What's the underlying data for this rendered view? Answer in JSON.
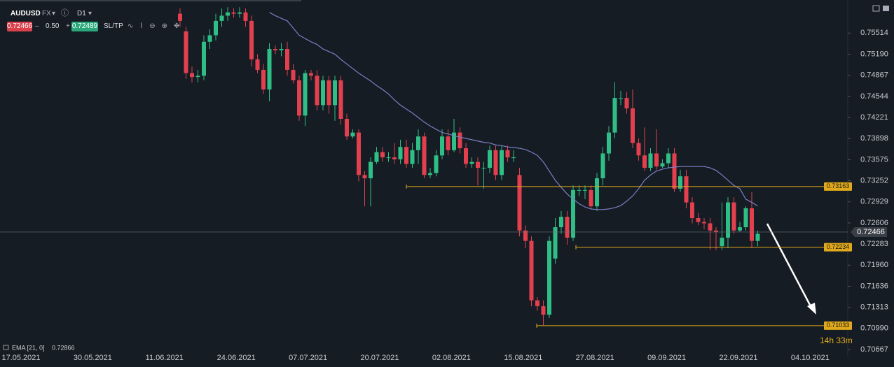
{
  "toolbar": {
    "symbol": "AUDUSD",
    "market": "FX",
    "timeframe": "D1",
    "bid": "0.72466",
    "spread": "0.50",
    "ask": "0.72489",
    "sltp": "SL/TP"
  },
  "chart_data": {
    "type": "candlestick",
    "up_color": "#2fbf86",
    "down_color": "#e2404f",
    "ylim": [
      0.7056,
      0.7602
    ],
    "yticks": [
      0.75514,
      {
        "value": 0.7519,
        "label": "0.75190"
      },
      0.74867,
      0.74544,
      0.74221,
      0.73898,
      0.73575,
      0.73252,
      0.72929,
      0.72606,
      0.72283,
      {
        "value": 0.7196,
        "label": "0.71960"
      },
      0.71636,
      0.71313,
      {
        "value": 0.7099,
        "label": "0.70990"
      },
      0.70667
    ],
    "dates": [
      "17.05.2021",
      "30.05.2021",
      "11.06.2021",
      "24.06.2021",
      "07.07.2021",
      "20.07.2021",
      "02.08.2021",
      "15.08.2021",
      "27.08.2021",
      "09.09.2021",
      "22.09.2021",
      "04.10.2021"
    ],
    "ohlc": [
      [
        0.7581,
        0.7589,
        0.7561,
        0.757
      ],
      [
        0.7554,
        0.7561,
        0.7481,
        0.749
      ],
      [
        0.749,
        0.75,
        0.7476,
        0.7484
      ],
      [
        0.7484,
        0.7495,
        0.7476,
        0.7486
      ],
      [
        0.7486,
        0.7548,
        0.7479,
        0.7538
      ],
      [
        0.7538,
        0.7557,
        0.7527,
        0.7548
      ],
      [
        0.7548,
        0.7581,
        0.754,
        0.757
      ],
      [
        0.757,
        0.7589,
        0.7561,
        0.7578
      ],
      [
        0.7578,
        0.7591,
        0.757,
        0.7583
      ],
      [
        0.7583,
        0.7589,
        0.7575,
        0.7581
      ],
      [
        0.7581,
        0.7591,
        0.7575,
        0.7583
      ],
      [
        0.7583,
        0.7589,
        0.7561,
        0.757
      ],
      [
        0.757,
        0.7578,
        0.75,
        0.7511
      ],
      [
        0.7511,
        0.7519,
        0.749,
        0.7495
      ],
      [
        0.7495,
        0.7504,
        0.7458,
        0.7465
      ],
      [
        0.7465,
        0.7536,
        0.7447,
        0.7527
      ],
      [
        0.7527,
        0.7532,
        0.7519,
        0.7525
      ],
      [
        0.7525,
        0.7536,
        0.7516,
        0.7527
      ],
      [
        0.7527,
        0.7538,
        0.7486,
        0.7495
      ],
      [
        0.7495,
        0.7504,
        0.7474,
        0.7479
      ],
      [
        0.7479,
        0.7486,
        0.7417,
        0.7425
      ],
      [
        0.7425,
        0.7495,
        0.7409,
        0.749
      ],
      [
        0.749,
        0.7495,
        0.7479,
        0.7486
      ],
      [
        0.7486,
        0.7495,
        0.7433,
        0.7441
      ],
      [
        0.7441,
        0.7486,
        0.7433,
        0.7479
      ],
      [
        0.7479,
        0.7486,
        0.7428,
        0.7441
      ],
      [
        0.7441,
        0.7486,
        0.7417,
        0.7479
      ],
      [
        0.7479,
        0.7486,
        0.7411,
        0.742
      ],
      [
        0.742,
        0.7428,
        0.7388,
        0.7393
      ],
      [
        0.7393,
        0.7404,
        0.739,
        0.7399
      ],
      [
        0.7399,
        0.7404,
        0.7324,
        0.7334
      ],
      [
        0.7334,
        0.734,
        0.7286,
        0.7329
      ],
      [
        0.7329,
        0.7361,
        0.7286,
        0.7354
      ],
      [
        0.7354,
        0.7377,
        0.7351,
        0.7369
      ],
      [
        0.7369,
        0.7377,
        0.7354,
        0.7361
      ],
      [
        0.7361,
        0.7369,
        0.7354,
        0.7361
      ],
      [
        0.7361,
        0.7383,
        0.7351,
        0.7358
      ],
      [
        0.7358,
        0.7388,
        0.7351,
        0.7377
      ],
      [
        0.7377,
        0.7388,
        0.7345,
        0.7351
      ],
      [
        0.7351,
        0.7383,
        0.7345,
        0.7372
      ],
      [
        0.7372,
        0.7404,
        0.7351,
        0.7393
      ],
      [
        0.7393,
        0.7399,
        0.7329,
        0.7334
      ],
      [
        0.7334,
        0.7345,
        0.7329,
        0.7337
      ],
      [
        0.7337,
        0.7372,
        0.7332,
        0.7364
      ],
      [
        0.7364,
        0.7404,
        0.7358,
        0.7393
      ],
      [
        0.7393,
        0.7404,
        0.7364,
        0.7372
      ],
      [
        0.7372,
        0.742,
        0.7369,
        0.7399
      ],
      [
        0.7399,
        0.7407,
        0.7367,
        0.7375
      ],
      [
        0.7375,
        0.7383,
        0.7345,
        0.7351
      ],
      [
        0.7351,
        0.7361,
        0.7345,
        0.7354
      ],
      [
        0.7354,
        0.7361,
        0.7318,
        0.7345
      ],
      [
        0.7345,
        0.7354,
        0.7313,
        0.7345
      ],
      [
        0.7345,
        0.7379,
        0.7337,
        0.7372
      ],
      [
        0.7372,
        0.7379,
        0.7326,
        0.7334
      ],
      [
        0.7334,
        0.7379,
        0.7326,
        0.7372
      ],
      [
        0.7372,
        0.7379,
        0.7354,
        0.7361
      ],
      [
        0.7361,
        0.7372,
        0.7354,
        0.7361
      ],
      [
        0.7334,
        0.7345,
        0.724,
        0.7249
      ],
      [
        0.7249,
        0.7257,
        0.7222,
        0.7233
      ],
      [
        0.7233,
        0.724,
        0.7133,
        0.7142
      ],
      [
        0.7142,
        0.7147,
        0.7126,
        0.7133
      ],
      [
        0.7133,
        0.7142,
        0.7104,
        0.712
      ],
      [
        0.712,
        0.724,
        0.7115,
        0.7233
      ],
      [
        0.7206,
        0.7268,
        0.7198,
        0.7254
      ],
      [
        0.7254,
        0.7279,
        0.7244,
        0.727
      ],
      [
        0.727,
        0.7279,
        0.7227,
        0.7238
      ],
      [
        0.7238,
        0.7318,
        0.7233,
        0.7311
      ],
      [
        0.7311,
        0.7318,
        0.7302,
        0.7311
      ],
      [
        0.7311,
        0.7318,
        0.7297,
        0.7311
      ],
      [
        0.7311,
        0.7318,
        0.7281,
        0.7286
      ],
      [
        0.7286,
        0.7337,
        0.7279,
        0.7329
      ],
      [
        0.7329,
        0.7377,
        0.7318,
        0.7367
      ],
      [
        0.7367,
        0.7409,
        0.7356,
        0.7399
      ],
      [
        0.7399,
        0.7476,
        0.739,
        0.7452
      ],
      [
        0.7452,
        0.7463,
        0.7441,
        0.7452
      ],
      [
        0.7452,
        0.7461,
        0.7428,
        0.7436
      ],
      [
        0.7436,
        0.7465,
        0.7375,
        0.7383
      ],
      [
        0.7383,
        0.739,
        0.7356,
        0.7364
      ],
      [
        0.7364,
        0.7407,
        0.734,
        0.7345
      ],
      [
        0.7345,
        0.7375,
        0.734,
        0.7367
      ],
      [
        0.7367,
        0.7404,
        0.7342,
        0.7347
      ],
      [
        0.7347,
        0.7358,
        0.7345,
        0.7352
      ],
      [
        0.7352,
        0.7375,
        0.7345,
        0.7367
      ],
      [
        0.7367,
        0.7375,
        0.7308,
        0.7313
      ],
      [
        0.7313,
        0.7342,
        0.7308,
        0.7332
      ],
      [
        0.7332,
        0.7342,
        0.7283,
        0.7292
      ],
      [
        0.7292,
        0.73,
        0.726,
        0.7268
      ],
      [
        0.7268,
        0.7276,
        0.7257,
        0.7262
      ],
      [
        0.7262,
        0.7268,
        0.7251,
        0.726
      ],
      [
        0.726,
        0.7268,
        0.7219,
        0.7249
      ],
      [
        0.7249,
        0.7254,
        0.7219,
        0.7247
      ],
      [
        0.7225,
        0.7292,
        0.7219,
        0.7238
      ],
      [
        0.7238,
        0.73,
        0.7222,
        0.7292
      ],
      [
        0.7292,
        0.73,
        0.7244,
        0.7249
      ],
      [
        0.7249,
        0.7262,
        0.7247,
        0.7254
      ],
      [
        0.7254,
        0.7286,
        0.7249,
        0.7283
      ],
      [
        0.7283,
        0.7308,
        0.7222,
        0.7233
      ],
      [
        0.7233,
        0.7249,
        0.7225,
        0.7244
      ]
    ],
    "ema": {
      "name": "EMA [21, 0]",
      "color": "#7b7fc4",
      "values": [
        null,
        null,
        null,
        null,
        null,
        null,
        null,
        null,
        null,
        null,
        null,
        null,
        null,
        null,
        null,
        0.7583,
        0.7578,
        0.7574,
        0.757,
        0.7559,
        0.7548,
        0.7543,
        0.7538,
        0.7534,
        0.7527,
        0.7523,
        0.7519,
        0.7511,
        0.7504,
        0.7497,
        0.749,
        0.7484,
        0.7478,
        0.7471,
        0.7465,
        0.7458,
        0.7449,
        0.7441,
        0.7435,
        0.7429,
        0.7422,
        0.7415,
        0.7409,
        0.7404,
        0.7399,
        0.7397,
        0.7394,
        0.7392,
        0.739,
        0.7388,
        0.7386,
        0.7384,
        0.7383,
        0.738,
        0.7379,
        0.7377,
        0.7376,
        0.7375,
        0.7373,
        0.7369,
        0.7364,
        0.7354,
        0.734,
        0.7326,
        0.7315,
        0.7305,
        0.7297,
        0.729,
        0.7285,
        0.7282,
        0.7281,
        0.7281,
        0.7282,
        0.7284,
        0.7287,
        0.7294,
        0.7302,
        0.7313,
        0.7326,
        0.7334,
        0.734,
        0.7343,
        0.7345,
        0.7346,
        0.7347,
        0.7347,
        0.7347,
        0.7347,
        0.7347,
        0.7345,
        0.7341,
        0.7334,
        0.7326,
        0.7318,
        0.7313,
        0.7297,
        0.7292,
        0.72866
      ]
    },
    "last_price": 0.72466,
    "levels": [
      0.73163,
      0.72234,
      0.71033
    ],
    "level_color": "#e0a91c",
    "countdown": "14h 33m"
  }
}
